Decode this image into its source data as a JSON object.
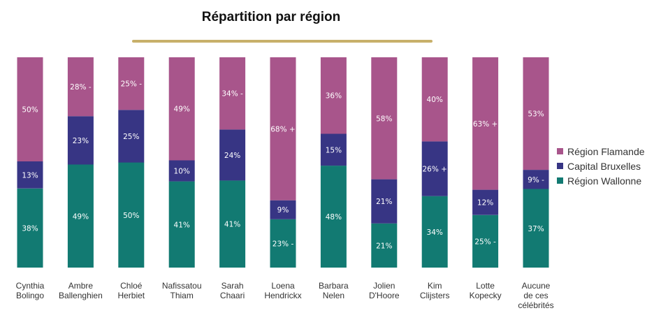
{
  "chart_data": {
    "type": "bar",
    "stacked": true,
    "title": "Répartition par région",
    "legend_position": "right",
    "categories": [
      [
        "Cynthia",
        "Bolingo"
      ],
      [
        "Ambre",
        "Ballenghien"
      ],
      [
        "Chloé",
        "Herbiet"
      ],
      [
        "Nafissatou",
        "Thiam"
      ],
      [
        "Sarah",
        "Chaari"
      ],
      [
        "Loena",
        "Hendrickx"
      ],
      [
        "Barbara",
        "Nelen"
      ],
      [
        "Jolien",
        "D'Hoore"
      ],
      [
        "Kim",
        "Clijsters"
      ],
      [
        "Lotte",
        "Kopecky"
      ],
      [
        "Aucune",
        "de ces",
        "célébrités"
      ]
    ],
    "series": [
      {
        "name": "Région Wallonne",
        "color": "#127a72",
        "values": [
          38,
          49,
          50,
          41,
          41,
          23,
          48,
          21,
          34,
          25,
          37
        ],
        "labels": [
          "38%",
          "49%",
          "50%",
          "41%",
          "41%",
          "23% -",
          "48%",
          "21%",
          "34%",
          "25% -",
          "37%"
        ]
      },
      {
        "name": "Capital Bruxelles",
        "color": "#373584",
        "values": [
          13,
          23,
          25,
          10,
          24,
          9,
          15,
          21,
          26,
          12,
          9
        ],
        "labels": [
          "13%",
          "23%",
          "25%",
          "10%",
          "24%",
          "9%",
          "15%",
          "21%",
          "26% +",
          "12%",
          "9% -"
        ]
      },
      {
        "name": "Région Flamande",
        "color": "#a8558b",
        "values": [
          50,
          28,
          25,
          49,
          34,
          68,
          36,
          58,
          40,
          63,
          53
        ],
        "labels": [
          "50%",
          "28% -",
          "25% -",
          "49%",
          "34% -",
          "68% +",
          "36%",
          "58%",
          "40%",
          "63% +",
          "53%"
        ]
      }
    ],
    "legend": [
      "Région Flamande",
      "Capital Bruxelles",
      "Région Wallonne"
    ],
    "ylim": [
      0,
      100
    ]
  }
}
